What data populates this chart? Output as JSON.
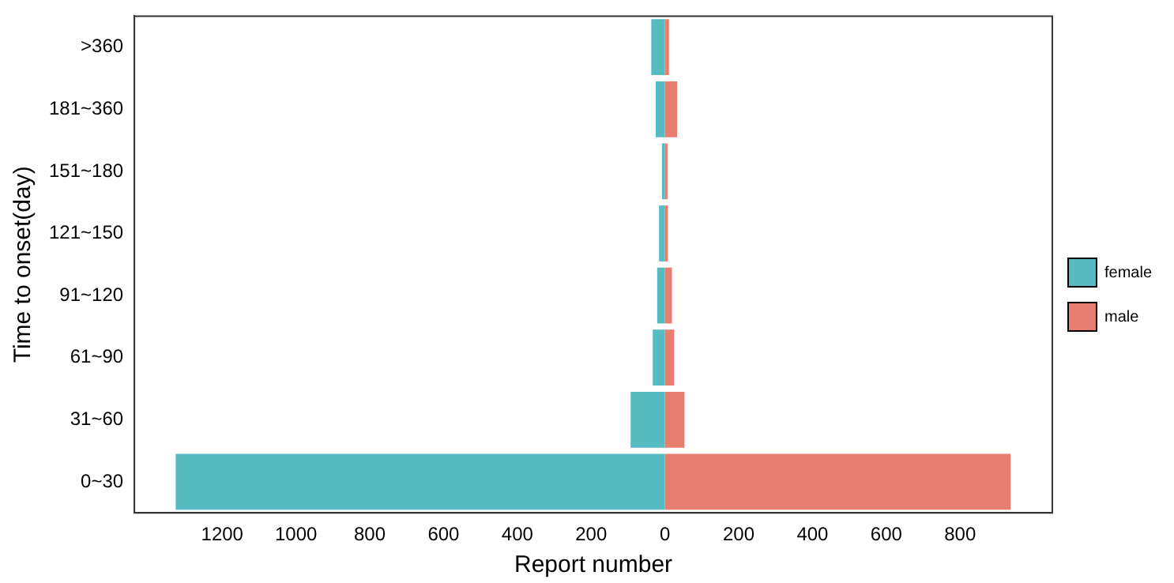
{
  "chart_data": {
    "type": "bar",
    "orientation": "horizontal",
    "stacked": true,
    "xlabel": "Report number",
    "ylabel": "Time to onset(day)",
    "categories": [
      ">360",
      "181~360",
      "151~180",
      "121~150",
      "91~120",
      "61~90",
      "31~60",
      "0~30"
    ],
    "series": [
      {
        "name": "female",
        "color": "#56bcc2",
        "values": [
          -37,
          -25,
          -8,
          -16,
          -21,
          -33,
          -93,
          -1326
        ]
      },
      {
        "name": "male",
        "color": "#e87d72",
        "values": [
          11,
          33,
          7,
          8,
          19,
          25,
          53,
          937
        ]
      }
    ],
    "xlim": [
      -1438,
      1050
    ],
    "xticks": [
      {
        "value": -1200,
        "label": "1200"
      },
      {
        "value": -1000,
        "label": "1000"
      },
      {
        "value": -800,
        "label": "800"
      },
      {
        "value": -600,
        "label": "600"
      },
      {
        "value": -400,
        "label": "400"
      },
      {
        "value": -200,
        "label": "200"
      },
      0,
      200,
      400,
      600,
      800
    ],
    "grid": false,
    "legend": "right"
  }
}
